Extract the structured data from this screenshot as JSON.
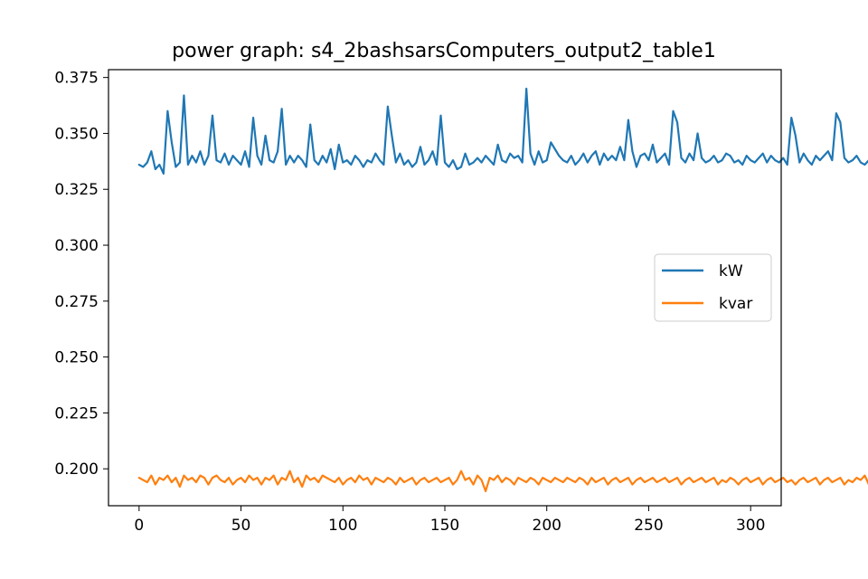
{
  "chart_data": {
    "type": "line",
    "title": "power graph: s4_2bashsarsComputers_output2_table1",
    "xlabel": "",
    "ylabel": "",
    "xlim": [
      -15,
      315
    ],
    "ylim": [
      0.1835,
      0.3785
    ],
    "xticks": [
      0,
      50,
      100,
      150,
      200,
      250,
      300
    ],
    "yticks": [
      0.2,
      0.225,
      0.25,
      0.275,
      0.3,
      0.325,
      0.35,
      0.375
    ],
    "xtick_labels": [
      "0",
      "50",
      "100",
      "150",
      "200",
      "250",
      "300"
    ],
    "ytick_labels": [
      "0.200",
      "0.225",
      "0.250",
      "0.275",
      "0.300",
      "0.325",
      "0.350",
      "0.375"
    ],
    "grid": false,
    "legend_position": "center-right",
    "series": [
      {
        "name": "kW",
        "color": "#1f77b4",
        "x_start": 0,
        "x_step": 2,
        "values": [
          0.336,
          0.335,
          0.337,
          0.342,
          0.334,
          0.336,
          0.332,
          0.36,
          0.346,
          0.335,
          0.337,
          0.367,
          0.336,
          0.34,
          0.337,
          0.342,
          0.336,
          0.34,
          0.358,
          0.338,
          0.337,
          0.341,
          0.336,
          0.34,
          0.338,
          0.336,
          0.342,
          0.335,
          0.357,
          0.34,
          0.336,
          0.349,
          0.338,
          0.337,
          0.342,
          0.361,
          0.336,
          0.34,
          0.337,
          0.34,
          0.338,
          0.335,
          0.354,
          0.338,
          0.336,
          0.34,
          0.337,
          0.343,
          0.334,
          0.345,
          0.337,
          0.338,
          0.336,
          0.34,
          0.338,
          0.335,
          0.338,
          0.337,
          0.341,
          0.338,
          0.336,
          0.362,
          0.349,
          0.337,
          0.341,
          0.336,
          0.338,
          0.335,
          0.337,
          0.344,
          0.336,
          0.338,
          0.342,
          0.336,
          0.358,
          0.337,
          0.335,
          0.338,
          0.334,
          0.335,
          0.341,
          0.336,
          0.337,
          0.339,
          0.337,
          0.34,
          0.338,
          0.336,
          0.345,
          0.338,
          0.337,
          0.341,
          0.339,
          0.34,
          0.337,
          0.37,
          0.341,
          0.336,
          0.342,
          0.337,
          0.338,
          0.346,
          0.343,
          0.34,
          0.338,
          0.337,
          0.34,
          0.336,
          0.338,
          0.341,
          0.337,
          0.34,
          0.342,
          0.336,
          0.341,
          0.338,
          0.34,
          0.338,
          0.344,
          0.338,
          0.356,
          0.342,
          0.335,
          0.34,
          0.341,
          0.338,
          0.345,
          0.337,
          0.339,
          0.341,
          0.336,
          0.36,
          0.355,
          0.339,
          0.337,
          0.341,
          0.338,
          0.35,
          0.339,
          0.337,
          0.338,
          0.34,
          0.337,
          0.338,
          0.341,
          0.34,
          0.337,
          0.338,
          0.336,
          0.34,
          0.338,
          0.337,
          0.339,
          0.341,
          0.337,
          0.34,
          0.338,
          0.337,
          0.339,
          0.336,
          0.357,
          0.349,
          0.337,
          0.341,
          0.338,
          0.336,
          0.34,
          0.338,
          0.34,
          0.342,
          0.338,
          0.359,
          0.355,
          0.339,
          0.337,
          0.338,
          0.34,
          0.337,
          0.336,
          0.338,
          0.337,
          0.348,
          0.338,
          0.352,
          0.345
        ]
      },
      {
        "name": "kvar",
        "color": "#ff7f0e",
        "x_start": 0,
        "x_step": 2,
        "values": [
          0.196,
          0.195,
          0.194,
          0.197,
          0.193,
          0.196,
          0.195,
          0.197,
          0.194,
          0.196,
          0.192,
          0.197,
          0.195,
          0.196,
          0.194,
          0.197,
          0.196,
          0.193,
          0.196,
          0.197,
          0.195,
          0.194,
          0.196,
          0.193,
          0.195,
          0.196,
          0.194,
          0.197,
          0.195,
          0.196,
          0.193,
          0.196,
          0.195,
          0.197,
          0.193,
          0.196,
          0.195,
          0.199,
          0.194,
          0.196,
          0.192,
          0.197,
          0.195,
          0.196,
          0.194,
          0.197,
          0.196,
          0.195,
          0.194,
          0.196,
          0.193,
          0.195,
          0.196,
          0.194,
          0.197,
          0.195,
          0.196,
          0.193,
          0.196,
          0.195,
          0.194,
          0.196,
          0.195,
          0.193,
          0.196,
          0.194,
          0.195,
          0.196,
          0.193,
          0.195,
          0.196,
          0.194,
          0.195,
          0.196,
          0.194,
          0.195,
          0.196,
          0.193,
          0.195,
          0.199,
          0.195,
          0.196,
          0.193,
          0.197,
          0.195,
          0.19,
          0.196,
          0.195,
          0.197,
          0.194,
          0.196,
          0.195,
          0.193,
          0.196,
          0.195,
          0.194,
          0.196,
          0.195,
          0.193,
          0.196,
          0.195,
          0.194,
          0.196,
          0.195,
          0.194,
          0.196,
          0.195,
          0.194,
          0.196,
          0.195,
          0.193,
          0.196,
          0.194,
          0.195,
          0.196,
          0.193,
          0.195,
          0.196,
          0.194,
          0.195,
          0.196,
          0.193,
          0.195,
          0.196,
          0.194,
          0.195,
          0.196,
          0.194,
          0.195,
          0.196,
          0.194,
          0.195,
          0.196,
          0.193,
          0.195,
          0.196,
          0.194,
          0.195,
          0.196,
          0.194,
          0.195,
          0.196,
          0.193,
          0.195,
          0.194,
          0.196,
          0.195,
          0.193,
          0.195,
          0.196,
          0.194,
          0.195,
          0.196,
          0.193,
          0.195,
          0.196,
          0.194,
          0.195,
          0.196,
          0.194,
          0.195,
          0.193,
          0.195,
          0.196,
          0.194,
          0.195,
          0.196,
          0.193,
          0.195,
          0.196,
          0.194,
          0.195,
          0.196,
          0.193,
          0.195,
          0.194,
          0.196,
          0.195,
          0.197,
          0.193,
          0.195,
          0.196,
          0.194,
          0.195,
          0.196,
          0.193,
          0.195,
          0.194,
          0.196,
          0.195,
          0.196,
          0.197,
          0.193,
          0.196,
          0.195,
          0.193,
          0.196,
          0.195,
          0.193,
          0.196,
          0.195,
          0.194,
          0.196,
          0.195,
          0.193,
          0.194,
          0.195,
          0.196,
          0.193,
          0.195,
          0.194,
          0.196,
          0.195,
          0.193,
          0.194,
          0.195,
          0.196,
          0.193,
          0.195,
          0.194,
          0.196,
          0.195,
          0.193,
          0.194,
          0.195,
          0.196,
          0.193,
          0.195,
          0.194,
          0.196,
          0.195,
          0.193,
          0.194,
          0.195,
          0.196,
          0.193,
          0.195,
          0.194,
          0.196,
          0.195,
          0.193,
          0.194,
          0.195,
          0.196,
          0.193,
          0.195,
          0.194,
          0.196,
          0.195,
          0.193,
          0.194,
          0.195,
          0.196,
          0.193,
          0.195,
          0.194,
          0.196,
          0.195,
          0.193,
          0.194,
          0.195,
          0.196,
          0.193,
          0.195,
          0.194,
          0.196,
          0.195,
          0.193,
          0.194,
          0.195,
          0.196,
          0.193,
          0.195,
          0.194,
          0.196,
          0.195,
          0.193,
          0.194,
          0.195,
          0.196,
          0.193,
          0.195,
          0.194,
          0.196,
          0.195,
          0.193,
          0.194,
          0.195,
          0.196,
          0.193,
          0.195,
          0.194,
          0.196,
          0.195,
          0.193,
          0.194,
          0.195,
          0.196,
          0.193,
          0.195,
          0.194,
          0.196,
          0.195,
          0.193,
          0.194,
          0.195,
          0.196,
          0.193
        ]
      }
    ]
  }
}
